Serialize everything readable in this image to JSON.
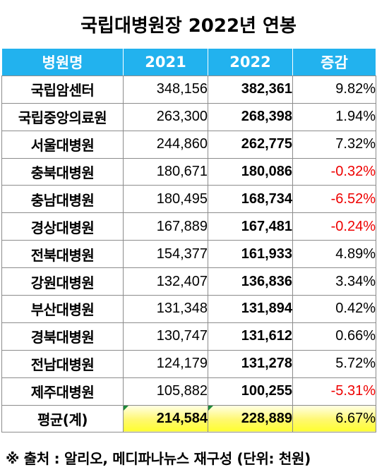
{
  "title": "국립대병원장 2022년 연봉",
  "table": {
    "headers": [
      "병원명",
      "2021",
      "2022",
      "증감"
    ],
    "rows": [
      {
        "hospital": "국립암센터",
        "y2021": "348,156",
        "y2022": "382,361",
        "change": "9.82%",
        "negative": false
      },
      {
        "hospital": "국립중앙의료원",
        "y2021": "263,300",
        "y2022": "268,398",
        "change": "1.94%",
        "negative": false
      },
      {
        "hospital": "서울대병원",
        "y2021": "244,860",
        "y2022": "262,775",
        "change": "7.32%",
        "negative": false
      },
      {
        "hospital": "충북대병원",
        "y2021": "180,671",
        "y2022": "180,086",
        "change": "-0.32%",
        "negative": true
      },
      {
        "hospital": "충남대병원",
        "y2021": "180,495",
        "y2022": "168,734",
        "change": "-6.52%",
        "negative": true
      },
      {
        "hospital": "경상대병원",
        "y2021": "167,889",
        "y2022": "167,481",
        "change": "-0.24%",
        "negative": true
      },
      {
        "hospital": "전북대병원",
        "y2021": "154,377",
        "y2022": "161,933",
        "change": "4.89%",
        "negative": false
      },
      {
        "hospital": "강원대병원",
        "y2021": "132,407",
        "y2022": "136,836",
        "change": "3.34%",
        "negative": false
      },
      {
        "hospital": "부산대병원",
        "y2021": "131,348",
        "y2022": "131,894",
        "change": "0.42%",
        "negative": false
      },
      {
        "hospital": "경북대병원",
        "y2021": "130,747",
        "y2022": "131,612",
        "change": "0.66%",
        "negative": false
      },
      {
        "hospital": "전남대병원",
        "y2021": "124,179",
        "y2022": "131,278",
        "change": "5.72%",
        "negative": false
      },
      {
        "hospital": "제주대병원",
        "y2021": "105,882",
        "y2022": "100,255",
        "change": "-5.31%",
        "negative": true
      }
    ],
    "average": {
      "label": "평균(계)",
      "y2021": "214,584",
      "y2022": "228,889",
      "change": "6.67%"
    }
  },
  "footer": "※ 출처 : 알리오, 메디파나뉴스 재구성 (단위: 천원)",
  "colors": {
    "header_bg": "#22b2ee",
    "negative_text": "#ee0000",
    "average_highlight": "#ffff30",
    "average_marker": "#1e8a3a"
  }
}
